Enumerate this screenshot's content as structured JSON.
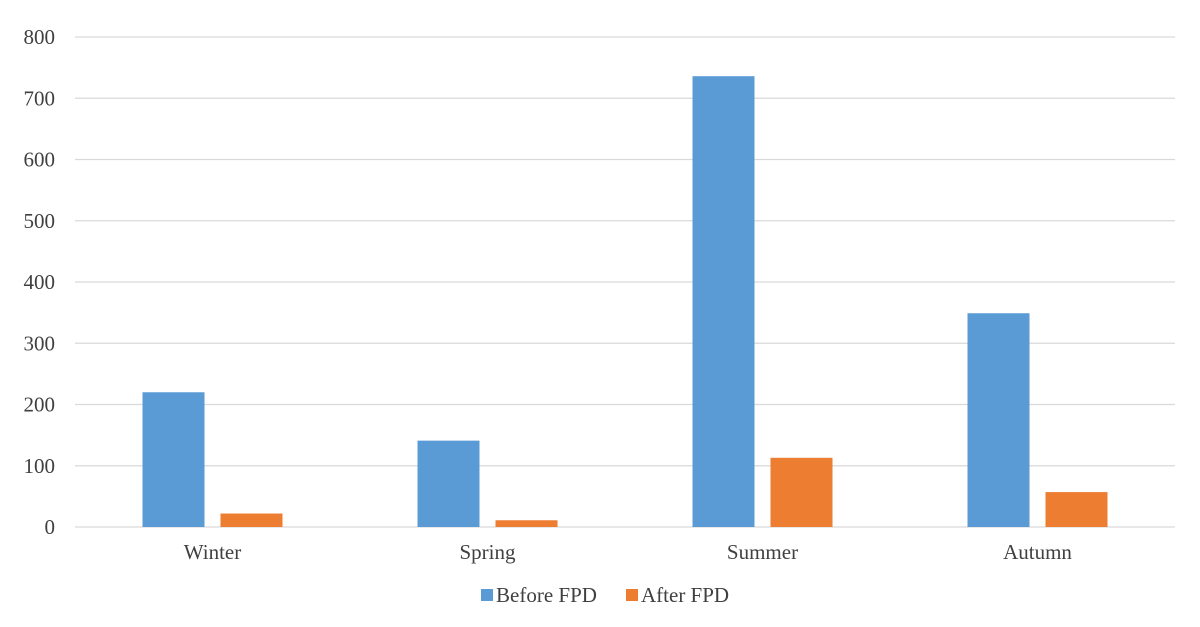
{
  "chart_data": {
    "type": "bar",
    "title": "",
    "xlabel": "",
    "ylabel": "",
    "categories": [
      "Winter",
      "Spring",
      "Summer",
      "Autumn"
    ],
    "series": [
      {
        "name": "Before FPD",
        "values": [
          220,
          141,
          736,
          349
        ],
        "color": "#5B9BD5"
      },
      {
        "name": "After FPD",
        "values": [
          22,
          11,
          113,
          57
        ],
        "color": "#ED7D31"
      }
    ],
    "ylim": [
      0,
      800
    ],
    "yticks": [
      "0",
      "100",
      "200",
      "300",
      "400",
      "500",
      "600",
      "700",
      "800"
    ],
    "grid": true,
    "legend": "bottom-center",
    "colors": {
      "gridline": "#D9D9D9",
      "axis_text": "#404040"
    }
  }
}
